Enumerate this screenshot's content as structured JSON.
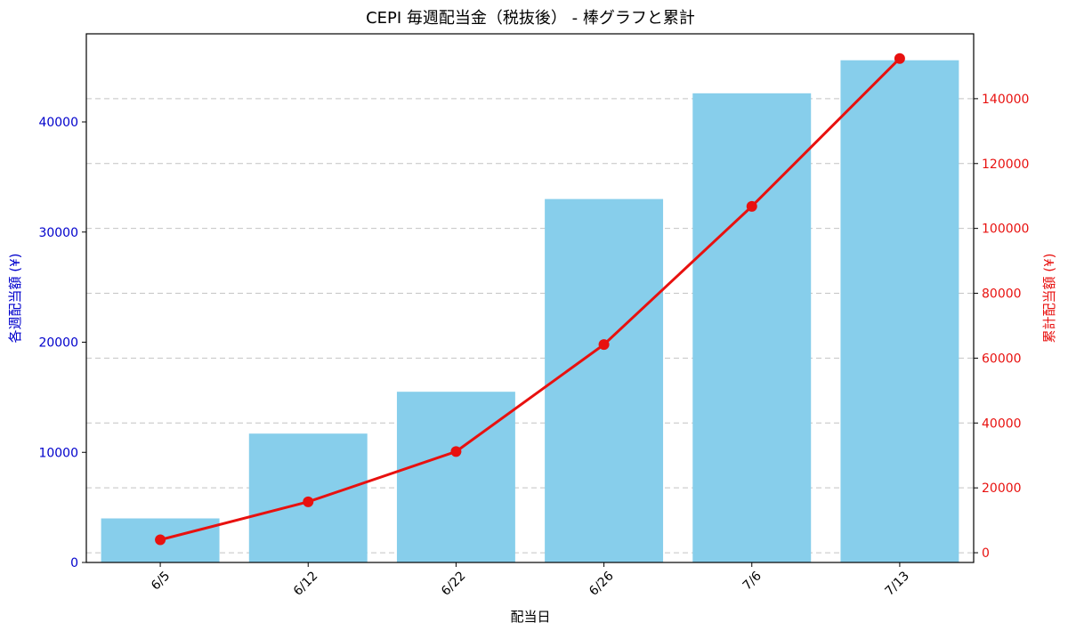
{
  "chart_data": {
    "type": "bar",
    "title": "CEPI 毎週配当金（税抜後） - 棒グラフと累計",
    "xlabel": "配当日",
    "ylabel_left": "各週配当額 (¥)",
    "ylabel_right": "累計配当額 (¥)",
    "categories": [
      "6/5",
      "6/12",
      "6/22",
      "6/26",
      "7/6",
      "7/13"
    ],
    "series": [
      {
        "values": [
          4000,
          11700,
          15500,
          33000,
          42600,
          45600
        ],
        "type": "bar",
        "axis": "left",
        "color": "#87ceeb"
      },
      {
        "values": [
          4000,
          15700,
          31200,
          64200,
          106800,
          152400
        ],
        "type": "line",
        "axis": "right",
        "color": "#e8110f"
      }
    ],
    "ylim_left": [
      0,
      48000
    ],
    "ylim_right": [
      -3000,
      160000
    ],
    "yticks_left": [
      0,
      10000,
      20000,
      30000,
      40000
    ],
    "yticks_right": [
      0,
      20000,
      40000,
      60000,
      80000,
      100000,
      120000,
      140000
    ],
    "grid": true,
    "colors": {
      "left_axis": "#0000cc",
      "right_axis": "#e8110f",
      "bar": "#87ceeb",
      "line": "#e8110f"
    }
  }
}
